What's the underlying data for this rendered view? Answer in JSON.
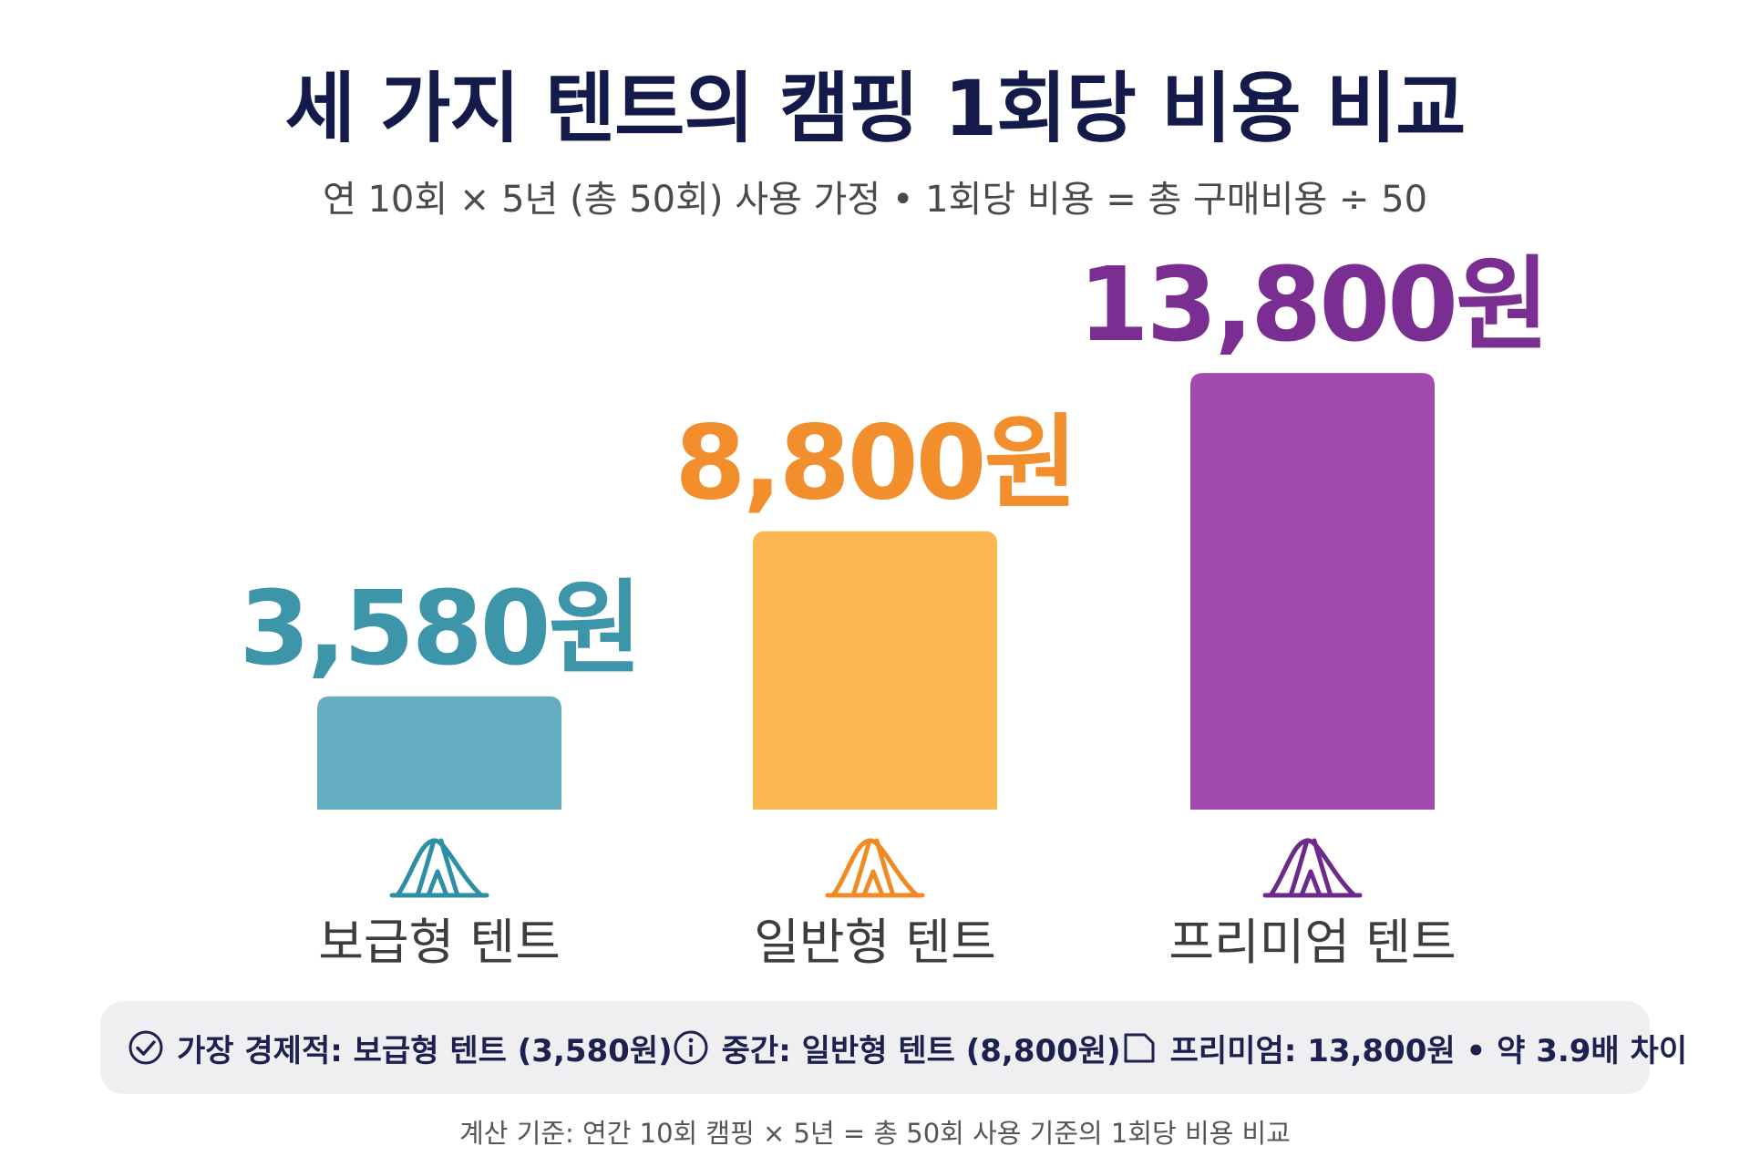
{
  "chart_data": {
    "type": "bar",
    "title": "세 가지 텐트의 캠핑 1회당 비용 비교",
    "subtitle": "연 10회 × 5년 (총 50회) 사용 가정 • 1회당 비용 = 총 구매비용 ÷ 50",
    "categories": [
      "보급형 텐트",
      "일반형 텐트",
      "프리미엄 텐트"
    ],
    "values": [
      3580,
      8800,
      13800
    ],
    "value_labels": [
      "3,580원",
      "8,800원",
      "13,800원"
    ],
    "colors": [
      "#65aec2",
      "#fbb752",
      "#a34aaf"
    ],
    "label_colors": [
      "#3d95aa",
      "#f28e2b",
      "#7b2e92"
    ],
    "icon_colors": [
      "#2e8fa3",
      "#ef8a24",
      "#6c2a8a"
    ],
    "icons": [
      "tent-icon",
      "tent-icon",
      "tent-icon"
    ],
    "xlabel": "",
    "ylabel": "",
    "grid": false,
    "legend": "none"
  },
  "summary": {
    "items": [
      {
        "icon": "check-circle-icon",
        "text": "가장 경제적: 보급형 텐트 (3,580원)"
      },
      {
        "icon": "info-circle-icon",
        "text": "중간: 일반형 텐트 (8,800원)"
      },
      {
        "icon": "document-icon",
        "text": "프리미엄: 13,800원 • 약 3.9배 차이"
      }
    ]
  },
  "footnote": "계산 기준: 연간 10회 캠핑 × 5년 = 총 50회 사용 기준의 1회당 비용 비교"
}
